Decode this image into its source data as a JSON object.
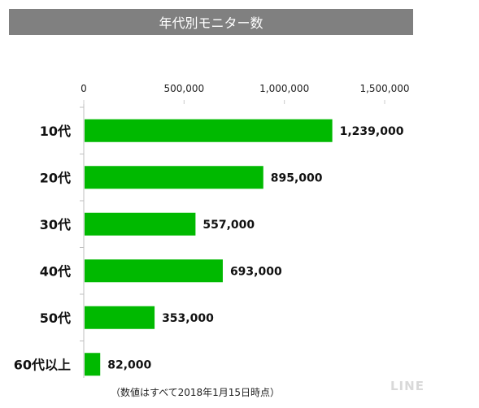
{
  "header": {
    "title": "年代別モニター数"
  },
  "footnote": "（数値はすべて2018年1月15日時点）",
  "brand": "LINE",
  "colors": {
    "bar": "#00b900",
    "title_bg": "#808080"
  },
  "chart_data": {
    "type": "bar",
    "orientation": "horizontal",
    "title": "年代別モニター数",
    "categories": [
      "10代",
      "20代",
      "30代",
      "40代",
      "50代",
      "60代以上"
    ],
    "values": [
      1239000,
      895000,
      557000,
      693000,
      353000,
      82000
    ],
    "value_labels": [
      "1,239,000",
      "895,000",
      "557,000",
      "693,000",
      "353,000",
      "82,000"
    ],
    "xlim": [
      0,
      1500000
    ],
    "x_ticks": [
      0,
      500000,
      1000000,
      1500000
    ],
    "x_tick_labels": [
      "0",
      "500,000",
      "1,000,000",
      "1,500,000"
    ],
    "x_axis_position": "top",
    "grid": false,
    "legend": "none"
  }
}
